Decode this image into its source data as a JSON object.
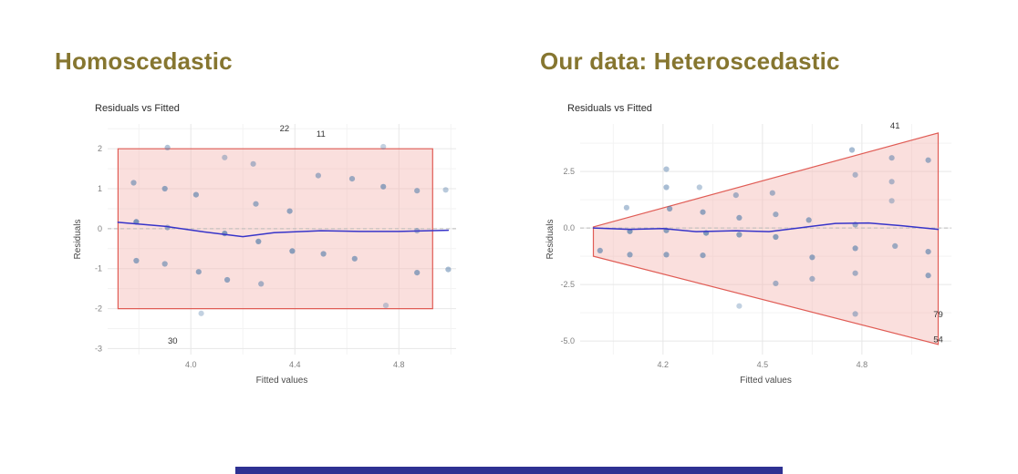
{
  "page": {
    "background": "#ffffff",
    "footer_bar_color": "#2e3192"
  },
  "panels": [
    {
      "heading": "Homoscedastic",
      "heading_color": "#867630"
    },
    {
      "heading": "Our data: Heteroscedastic",
      "heading_color": "#867630"
    }
  ],
  "chart_data": [
    {
      "type": "scatter",
      "title": "Residuals vs Fitted",
      "xlabel": "Fitted values",
      "ylabel": "Residuals",
      "xlim": [
        3.68,
        5.02
      ],
      "ylim": [
        -3.15,
        2.62
      ],
      "xtick_vals": [
        4.0,
        4.4,
        4.8
      ],
      "xtick_labels": [
        "4.0",
        "4.4",
        "4.8"
      ],
      "ytick_vals": [
        2,
        1,
        0,
        -1,
        -2,
        -3
      ],
      "ytick_labels": [
        "2",
        "1",
        "0",
        "-1",
        "-2",
        "-3"
      ],
      "xgrid_minor": [
        3.8,
        4.2,
        4.6,
        5.0
      ],
      "ygrid_minor": [
        2.5,
        1.5,
        0.5,
        -0.5,
        -1.5,
        -2.5
      ],
      "grid": true,
      "legend": "none",
      "point_color": "#4f7aa8",
      "band": {
        "fill": "#f5b8b3",
        "stroke": "#e05c55",
        "opacity": 0.45,
        "points": [
          [
            3.72,
            2.0
          ],
          [
            4.93,
            2.0
          ],
          [
            4.93,
            -2.0
          ],
          [
            3.72,
            -2.0
          ]
        ]
      },
      "zero_line": true,
      "smooth": {
        "color": "#3734c9",
        "points": [
          [
            3.72,
            0.16
          ],
          [
            3.9,
            0.06
          ],
          [
            4.05,
            -0.08
          ],
          [
            4.2,
            -0.2
          ],
          [
            4.32,
            -0.1
          ],
          [
            4.5,
            -0.05
          ],
          [
            4.65,
            -0.07
          ],
          [
            4.8,
            -0.07
          ],
          [
            4.99,
            -0.04
          ]
        ]
      },
      "points": [
        [
          3.78,
          1.15,
          0.55
        ],
        [
          3.79,
          0.17,
          0.75
        ],
        [
          3.79,
          -0.8,
          0.6
        ],
        [
          3.91,
          2.03,
          0.45
        ],
        [
          3.9,
          1.0,
          0.6
        ],
        [
          3.91,
          0.03,
          0.5
        ],
        [
          3.9,
          -0.88,
          0.55
        ],
        [
          4.02,
          0.85,
          0.6
        ],
        [
          4.03,
          -1.08,
          0.6
        ],
        [
          4.04,
          -2.12,
          0.35
        ],
        [
          4.13,
          1.78,
          0.4
        ],
        [
          4.13,
          -0.12,
          0.7
        ],
        [
          4.14,
          -1.28,
          0.6
        ],
        [
          4.24,
          1.62,
          0.45
        ],
        [
          4.25,
          0.62,
          0.55
        ],
        [
          4.26,
          -0.32,
          0.65
        ],
        [
          4.27,
          -1.38,
          0.5
        ],
        [
          4.38,
          0.44,
          0.6
        ],
        [
          4.39,
          -0.56,
          0.65
        ],
        [
          4.49,
          1.33,
          0.5
        ],
        [
          4.51,
          -0.63,
          0.6
        ],
        [
          4.62,
          1.25,
          0.55
        ],
        [
          4.63,
          -0.75,
          0.6
        ],
        [
          4.74,
          2.05,
          0.35
        ],
        [
          4.74,
          1.05,
          0.6
        ],
        [
          4.75,
          -1.92,
          0.35
        ],
        [
          4.87,
          0.95,
          0.55
        ],
        [
          4.87,
          -0.05,
          0.45
        ],
        [
          4.87,
          -1.1,
          0.6
        ],
        [
          4.98,
          0.97,
          0.4
        ],
        [
          4.99,
          -1.02,
          0.5
        ]
      ],
      "point_labels": [
        {
          "text": "22",
          "x": 4.36,
          "y": 2.44
        },
        {
          "text": "11",
          "x": 4.5,
          "y": 2.3
        },
        {
          "text": "30",
          "x": 3.93,
          "y": -2.88
        }
      ]
    },
    {
      "type": "scatter",
      "title": "Residuals vs Fitted",
      "xlabel": "Fitted values",
      "ylabel": "Residuals",
      "xlim": [
        3.95,
        5.07
      ],
      "ylim": [
        -5.6,
        4.6
      ],
      "xtick_vals": [
        4.2,
        4.5,
        4.8
      ],
      "xtick_labels": [
        "4.2",
        "4.5",
        "4.8"
      ],
      "ytick_vals": [
        2.5,
        0.0,
        -2.5,
        -5.0
      ],
      "ytick_labels": [
        "2.5",
        "0.0",
        "-2.5",
        "-5.0"
      ],
      "xgrid_minor": [
        4.05,
        4.35,
        4.65,
        4.95
      ],
      "ygrid_minor": [
        3.75,
        1.25,
        -1.25,
        -3.75
      ],
      "grid": true,
      "legend": "none",
      "point_color": "#4f7aa8",
      "band": {
        "fill": "#f5b8b3",
        "stroke": "#e05c55",
        "opacity": 0.45,
        "points": [
          [
            3.99,
            0.05
          ],
          [
            5.03,
            4.2
          ],
          [
            5.03,
            -5.15
          ],
          [
            3.99,
            -1.25
          ]
        ]
      },
      "zero_line": true,
      "smooth": {
        "color": "#3734c9",
        "points": [
          [
            3.99,
            0.0
          ],
          [
            4.1,
            -0.06
          ],
          [
            4.2,
            -0.03
          ],
          [
            4.3,
            -0.16
          ],
          [
            4.42,
            -0.12
          ],
          [
            4.52,
            -0.16
          ],
          [
            4.62,
            0.02
          ],
          [
            4.72,
            0.2
          ],
          [
            4.82,
            0.22
          ],
          [
            4.92,
            0.1
          ],
          [
            5.03,
            -0.06
          ]
        ]
      },
      "points": [
        [
          4.01,
          -1.0,
          0.6
        ],
        [
          4.09,
          0.9,
          0.45
        ],
        [
          4.1,
          -0.15,
          0.7
        ],
        [
          4.1,
          -1.18,
          0.6
        ],
        [
          4.21,
          2.6,
          0.45
        ],
        [
          4.21,
          1.8,
          0.5
        ],
        [
          4.22,
          0.85,
          0.6
        ],
        [
          4.21,
          -0.11,
          0.65
        ],
        [
          4.21,
          -1.18,
          0.6
        ],
        [
          4.31,
          1.8,
          0.4
        ],
        [
          4.32,
          0.7,
          0.6
        ],
        [
          4.33,
          -0.22,
          0.7
        ],
        [
          4.32,
          -1.21,
          0.6
        ],
        [
          4.42,
          1.45,
          0.5
        ],
        [
          4.43,
          0.45,
          0.6
        ],
        [
          4.43,
          -0.3,
          0.65
        ],
        [
          4.43,
          -3.45,
          0.35
        ],
        [
          4.53,
          1.55,
          0.5
        ],
        [
          4.54,
          0.6,
          0.55
        ],
        [
          4.54,
          -0.4,
          0.65
        ],
        [
          4.54,
          -2.45,
          0.5
        ],
        [
          4.64,
          0.35,
          0.6
        ],
        [
          4.65,
          -1.3,
          0.6
        ],
        [
          4.65,
          -2.25,
          0.5
        ],
        [
          4.77,
          3.45,
          0.5
        ],
        [
          4.78,
          2.35,
          0.45
        ],
        [
          4.78,
          0.15,
          0.55
        ],
        [
          4.78,
          -0.9,
          0.6
        ],
        [
          4.78,
          -2.0,
          0.5
        ],
        [
          4.78,
          -3.8,
          0.45
        ],
        [
          4.89,
          3.1,
          0.5
        ],
        [
          4.89,
          2.05,
          0.45
        ],
        [
          4.89,
          1.2,
          0.4
        ],
        [
          4.9,
          -0.8,
          0.55
        ],
        [
          5.0,
          3.0,
          0.55
        ],
        [
          5.0,
          -1.05,
          0.6
        ],
        [
          5.0,
          -2.1,
          0.6
        ]
      ],
      "point_labels": [
        {
          "text": "41",
          "x": 4.9,
          "y": 4.4
        },
        {
          "text": "79",
          "x": 5.03,
          "y": -3.95
        },
        {
          "text": "54",
          "x": 5.03,
          "y": -5.05
        }
      ]
    }
  ]
}
